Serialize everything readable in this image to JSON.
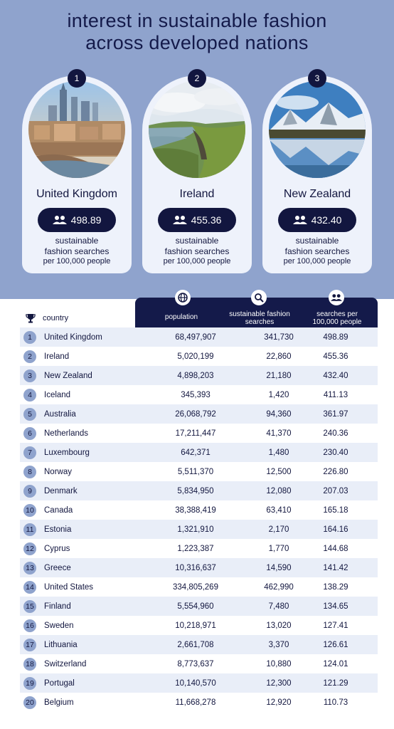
{
  "title_line1": "interest in sustainable fashion",
  "title_line2": "across developed nations",
  "colors": {
    "navy": "#12163f",
    "periwinkle": "#8fa3cd",
    "stripe": "#e9eef8"
  },
  "cards": [
    {
      "rank": "1",
      "country": "United Kingdom",
      "value": "498.89",
      "caption1": "sustainable",
      "caption2": "fashion searches",
      "caption3": "per 100,000 people",
      "photo": "london-skyline-photo"
    },
    {
      "rank": "2",
      "country": "Ireland",
      "value": "455.36",
      "caption1": "sustainable",
      "caption2": "fashion searches",
      "caption3": "per 100,000 people",
      "photo": "irish-coast-photo"
    },
    {
      "rank": "3",
      "country": "New Zealand",
      "value": "432.40",
      "caption1": "sustainable",
      "caption2": "fashion searches",
      "caption3": "per 100,000 people",
      "photo": "mountain-lake-photo"
    }
  ],
  "table": {
    "country_header": "country",
    "pop_header": "population",
    "search_header_1": "sustainable fashion",
    "search_header_2": "searches",
    "per_header_1": "searches per",
    "per_header_2": "100,000 people",
    "icons": {
      "country": "trophy-icon",
      "population": "globe-icon",
      "searches": "search-icon",
      "per": "people-icon"
    }
  },
  "chart_data": {
    "type": "table",
    "columns": [
      "country",
      "population",
      "sustainable fashion searches",
      "searches per 100,000 people"
    ],
    "rows": [
      {
        "rank": "1",
        "country": "United Kingdom",
        "population": "68,497,907",
        "searches": "341,730",
        "per": "498.89"
      },
      {
        "rank": "2",
        "country": "Ireland",
        "population": "5,020,199",
        "searches": "22,860",
        "per": "455.36"
      },
      {
        "rank": "3",
        "country": "New Zealand",
        "population": "4,898,203",
        "searches": "21,180",
        "per": "432.40"
      },
      {
        "rank": "4",
        "country": "Iceland",
        "population": "345,393",
        "searches": "1,420",
        "per": "411.13"
      },
      {
        "rank": "5",
        "country": "Australia",
        "population": "26,068,792",
        "searches": "94,360",
        "per": "361.97"
      },
      {
        "rank": "6",
        "country": "Netherlands",
        "population": "17,211,447",
        "searches": "41,370",
        "per": "240.36"
      },
      {
        "rank": "7",
        "country": "Luxembourg",
        "population": "642,371",
        "searches": "1,480",
        "per": "230.40"
      },
      {
        "rank": "8",
        "country": "Norway",
        "population": "5,511,370",
        "searches": "12,500",
        "per": "226.80"
      },
      {
        "rank": "9",
        "country": "Denmark",
        "population": "5,834,950",
        "searches": "12,080",
        "per": "207.03"
      },
      {
        "rank": "10",
        "country": "Canada",
        "population": "38,388,419",
        "searches": "63,410",
        "per": "165.18"
      },
      {
        "rank": "11",
        "country": "Estonia",
        "population": "1,321,910",
        "searches": "2,170",
        "per": "164.16"
      },
      {
        "rank": "12",
        "country": "Cyprus",
        "population": "1,223,387",
        "searches": "1,770",
        "per": "144.68"
      },
      {
        "rank": "13",
        "country": "Greece",
        "population": "10,316,637",
        "searches": "14,590",
        "per": "141.42"
      },
      {
        "rank": "14",
        "country": "United States",
        "population": "334,805,269",
        "searches": "462,990",
        "per": "138.29"
      },
      {
        "rank": "15",
        "country": "Finland",
        "population": "5,554,960",
        "searches": "7,480",
        "per": "134.65"
      },
      {
        "rank": "16",
        "country": "Sweden",
        "population": "10,218,971",
        "searches": "13,020",
        "per": "127.41"
      },
      {
        "rank": "17",
        "country": "Lithuania",
        "population": "2,661,708",
        "searches": "3,370",
        "per": "126.61"
      },
      {
        "rank": "18",
        "country": "Switzerland",
        "population": "8,773,637",
        "searches": "10,880",
        "per": "124.01"
      },
      {
        "rank": "19",
        "country": "Portugal",
        "population": "10,140,570",
        "searches": "12,300",
        "per": "121.29"
      },
      {
        "rank": "20",
        "country": "Belgium",
        "population": "11,668,278",
        "searches": "12,920",
        "per": "110.73"
      }
    ]
  }
}
